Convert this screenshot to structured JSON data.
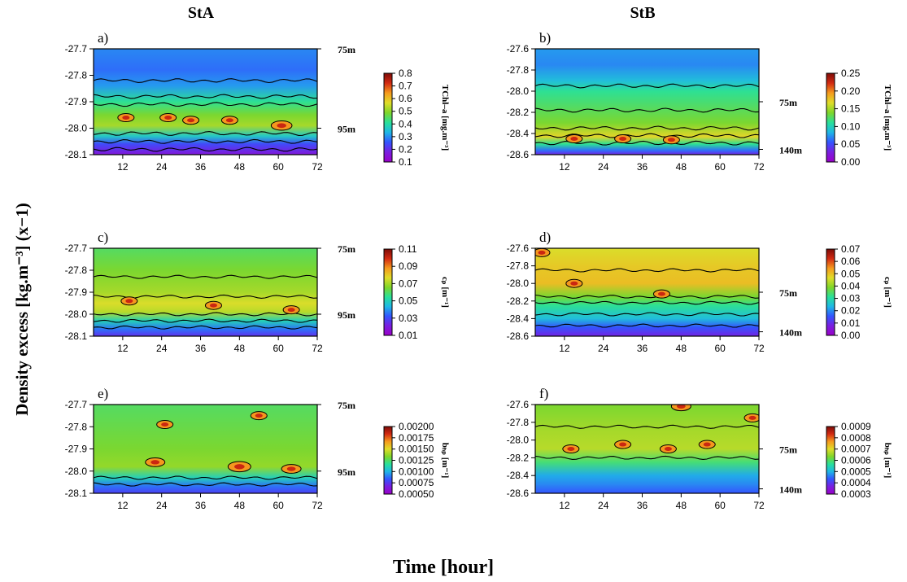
{
  "figure": {
    "ylabel": "Density excess [kg.m⁻³]  (x−1)",
    "xlabel": "Time [hour]"
  },
  "colorscale": {
    "name": "rainbow",
    "stops": [
      "#9b00c8",
      "#7a1fe0",
      "#3355ff",
      "#1fb7e6",
      "#29e09a",
      "#7fd62a",
      "#e0dd2a",
      "#f59a1e",
      "#d32a12",
      "#7d0c08"
    ]
  },
  "chart_data": [
    {
      "id": "a",
      "panel_label": "a)",
      "station": "StA",
      "type": "heatmap",
      "x_ticks": [
        12,
        24,
        36,
        48,
        60,
        72
      ],
      "xlim": [
        3,
        72
      ],
      "ylim": [
        -28.1,
        -27.7
      ],
      "y_ticks": [
        "-27.7",
        "-27.8",
        "-27.9",
        "-28.0",
        "-28.1"
      ],
      "depth_labels": [
        {
          "label": "75m",
          "y": -27.7
        },
        {
          "label": "95m",
          "y": -28.0
        }
      ],
      "colorbar": {
        "label": "TChl–a [mg.m⁻³]",
        "ticks": [
          "0.8",
          "0.7",
          "0.6",
          "0.5",
          "0.4",
          "0.3",
          "0.2",
          "0.1"
        ]
      },
      "profile_bands": [
        [
          -27.7,
          0.28
        ],
        [
          -27.78,
          0.25
        ],
        [
          -27.84,
          0.3
        ],
        [
          -27.9,
          0.45
        ],
        [
          -27.95,
          0.55
        ],
        [
          -27.99,
          0.6
        ],
        [
          -28.03,
          0.38
        ],
        [
          -28.06,
          0.2
        ],
        [
          -28.1,
          0.08
        ]
      ],
      "hotspots": [
        [
          13,
          -27.96,
          0.22
        ],
        [
          26,
          -27.96,
          0.2
        ],
        [
          33,
          -27.97,
          0.2
        ],
        [
          45,
          -27.97,
          0.25
        ],
        [
          61,
          -27.99,
          0.32
        ]
      ],
      "contours": [
        -27.82,
        -27.88,
        -27.91,
        -28.02,
        -28.05,
        -28.08
      ]
    },
    {
      "id": "b",
      "panel_label": "b)",
      "station": "StB",
      "type": "heatmap",
      "x_ticks": [
        12,
        24,
        36,
        48,
        60,
        72
      ],
      "xlim": [
        3,
        72
      ],
      "ylim": [
        -28.6,
        -27.6
      ],
      "y_ticks": [
        "-27.6",
        "-27.8",
        "-28.0",
        "-28.2",
        "-28.4",
        "-28.6"
      ],
      "depth_labels": [
        {
          "label": "75m",
          "y": -28.1
        },
        {
          "label": "140m",
          "y": -28.55
        }
      ],
      "colorbar": {
        "label": "TChl–a [mg.m⁻³]",
        "ticks": [
          "0.25",
          "0.20",
          "0.15",
          "0.10",
          "0.05",
          "0.00"
        ]
      },
      "profile_bands": [
        [
          -27.6,
          0.3
        ],
        [
          -27.75,
          0.28
        ],
        [
          -27.9,
          0.35
        ],
        [
          -28.0,
          0.45
        ],
        [
          -28.15,
          0.5
        ],
        [
          -28.3,
          0.55
        ],
        [
          -28.43,
          0.68
        ],
        [
          -28.5,
          0.45
        ],
        [
          -28.56,
          0.25
        ],
        [
          -28.6,
          0.12
        ]
      ],
      "hotspots": [
        [
          15,
          -28.45,
          0.15
        ],
        [
          30,
          -28.45,
          0.15
        ],
        [
          45,
          -28.46,
          0.12
        ]
      ],
      "contours": [
        -27.95,
        -28.18,
        -28.35,
        -28.42,
        -28.49
      ]
    },
    {
      "id": "c",
      "panel_label": "c)",
      "station": "StA",
      "type": "heatmap",
      "x_ticks": [
        12,
        24,
        36,
        48,
        60,
        72
      ],
      "xlim": [
        3,
        72
      ],
      "ylim": [
        -28.1,
        -27.7
      ],
      "y_ticks": [
        "-27.7",
        "-27.8",
        "-27.9",
        "-28.0",
        "-28.1"
      ],
      "depth_labels": [
        {
          "label": "75m",
          "y": -27.7
        },
        {
          "label": "95m",
          "y": -28.0
        }
      ],
      "colorbar": {
        "label": "cₚ [m⁻¹]",
        "ticks": [
          "0.11",
          "0.09",
          "0.07",
          "0.05",
          "0.03",
          "0.01"
        ]
      },
      "profile_bands": [
        [
          -27.7,
          0.5
        ],
        [
          -27.8,
          0.55
        ],
        [
          -27.9,
          0.6
        ],
        [
          -27.95,
          0.66
        ],
        [
          -27.99,
          0.62
        ],
        [
          -28.03,
          0.4
        ],
        [
          -28.07,
          0.25
        ],
        [
          -28.1,
          0.15
        ]
      ],
      "hotspots": [
        [
          14,
          -27.94,
          0.15
        ],
        [
          40,
          -27.96,
          0.15
        ],
        [
          64,
          -27.98,
          0.25
        ]
      ],
      "contours": [
        -27.83,
        -27.92,
        -28.0,
        -28.03,
        -28.06
      ]
    },
    {
      "id": "d",
      "panel_label": "d)",
      "station": "StB",
      "type": "heatmap",
      "x_ticks": [
        12,
        24,
        36,
        48,
        60,
        72
      ],
      "xlim": [
        3,
        72
      ],
      "ylim": [
        -28.6,
        -27.6
      ],
      "y_ticks": [
        "-27.6",
        "-27.8",
        "-28.0",
        "-28.2",
        "-28.4",
        "-28.6"
      ],
      "depth_labels": [
        {
          "label": "75m",
          "y": -28.1
        },
        {
          "label": "140m",
          "y": -28.55
        }
      ],
      "colorbar": {
        "label": "cₚ [m⁻¹]",
        "ticks": [
          "0.07",
          "0.06",
          "0.05",
          "0.04",
          "0.03",
          "0.02",
          "0.01",
          "0.00"
        ]
      },
      "profile_bands": [
        [
          -27.6,
          0.66
        ],
        [
          -27.8,
          0.7
        ],
        [
          -28.0,
          0.72
        ],
        [
          -28.15,
          0.55
        ],
        [
          -28.25,
          0.45
        ],
        [
          -28.4,
          0.35
        ],
        [
          -28.5,
          0.22
        ],
        [
          -28.6,
          0.12
        ]
      ],
      "hotspots": [
        [
          15,
          -28.0,
          0.12
        ],
        [
          42,
          -28.12,
          0.15
        ],
        [
          5,
          -27.65,
          0.15
        ]
      ],
      "contours": [
        -27.85,
        -28.15,
        -28.22,
        -28.35,
        -28.48
      ]
    },
    {
      "id": "e",
      "panel_label": "e)",
      "station": "StA",
      "type": "heatmap",
      "x_ticks": [
        12,
        24,
        36,
        48,
        60,
        72
      ],
      "xlim": [
        3,
        72
      ],
      "ylim": [
        -28.1,
        -27.7
      ],
      "y_ticks": [
        "-27.7",
        "-27.8",
        "-27.9",
        "-28.0",
        "-28.1"
      ],
      "depth_labels": [
        {
          "label": "75m",
          "y": -27.7
        },
        {
          "label": "95m",
          "y": -28.0
        }
      ],
      "colorbar": {
        "label": "bₕₚ [m⁻¹]",
        "ticks": [
          "0.00200",
          "0.00175",
          "0.00150",
          "0.00125",
          "0.00100",
          "0.00075",
          "0.00050"
        ]
      },
      "profile_bands": [
        [
          -27.7,
          0.5
        ],
        [
          -27.9,
          0.55
        ],
        [
          -27.98,
          0.58
        ],
        [
          -28.03,
          0.4
        ],
        [
          -28.07,
          0.25
        ],
        [
          -28.1,
          0.18
        ]
      ],
      "hotspots": [
        [
          22,
          -27.96,
          0.3
        ],
        [
          48,
          -27.98,
          0.35
        ],
        [
          64,
          -27.99,
          0.3
        ],
        [
          54,
          -27.75,
          0.15
        ],
        [
          25,
          -27.79,
          0.12
        ]
      ],
      "contours": [
        -28.03,
        -28.06
      ]
    },
    {
      "id": "f",
      "panel_label": "f)",
      "station": "StB",
      "type": "heatmap",
      "x_ticks": [
        12,
        24,
        36,
        48,
        60,
        72
      ],
      "xlim": [
        3,
        72
      ],
      "ylim": [
        -28.6,
        -27.6
      ],
      "y_ticks": [
        "-27.6",
        "-27.8",
        "-28.0",
        "-28.2",
        "-28.4",
        "-28.6"
      ],
      "depth_labels": [
        {
          "label": "75m",
          "y": -28.1
        },
        {
          "label": "140m",
          "y": -28.55
        }
      ],
      "colorbar": {
        "label": "bₕₚ [m⁻¹]",
        "ticks": [
          "0.0009",
          "0.0008",
          "0.0007",
          "0.0006",
          "0.0005",
          "0.0004",
          "0.0003"
        ]
      },
      "profile_bands": [
        [
          -27.6,
          0.55
        ],
        [
          -27.9,
          0.6
        ],
        [
          -28.1,
          0.62
        ],
        [
          -28.25,
          0.48
        ],
        [
          -28.4,
          0.32
        ],
        [
          -28.5,
          0.28
        ],
        [
          -28.6,
          0.22
        ]
      ],
      "hotspots": [
        [
          14,
          -28.1,
          0.25
        ],
        [
          30,
          -28.05,
          0.2
        ],
        [
          48,
          -27.62,
          0.3
        ],
        [
          70,
          -27.75,
          0.25
        ],
        [
          44,
          -28.1,
          0.2
        ],
        [
          56,
          -28.05,
          0.2
        ]
      ],
      "contours": [
        -27.85,
        -28.2
      ]
    }
  ]
}
